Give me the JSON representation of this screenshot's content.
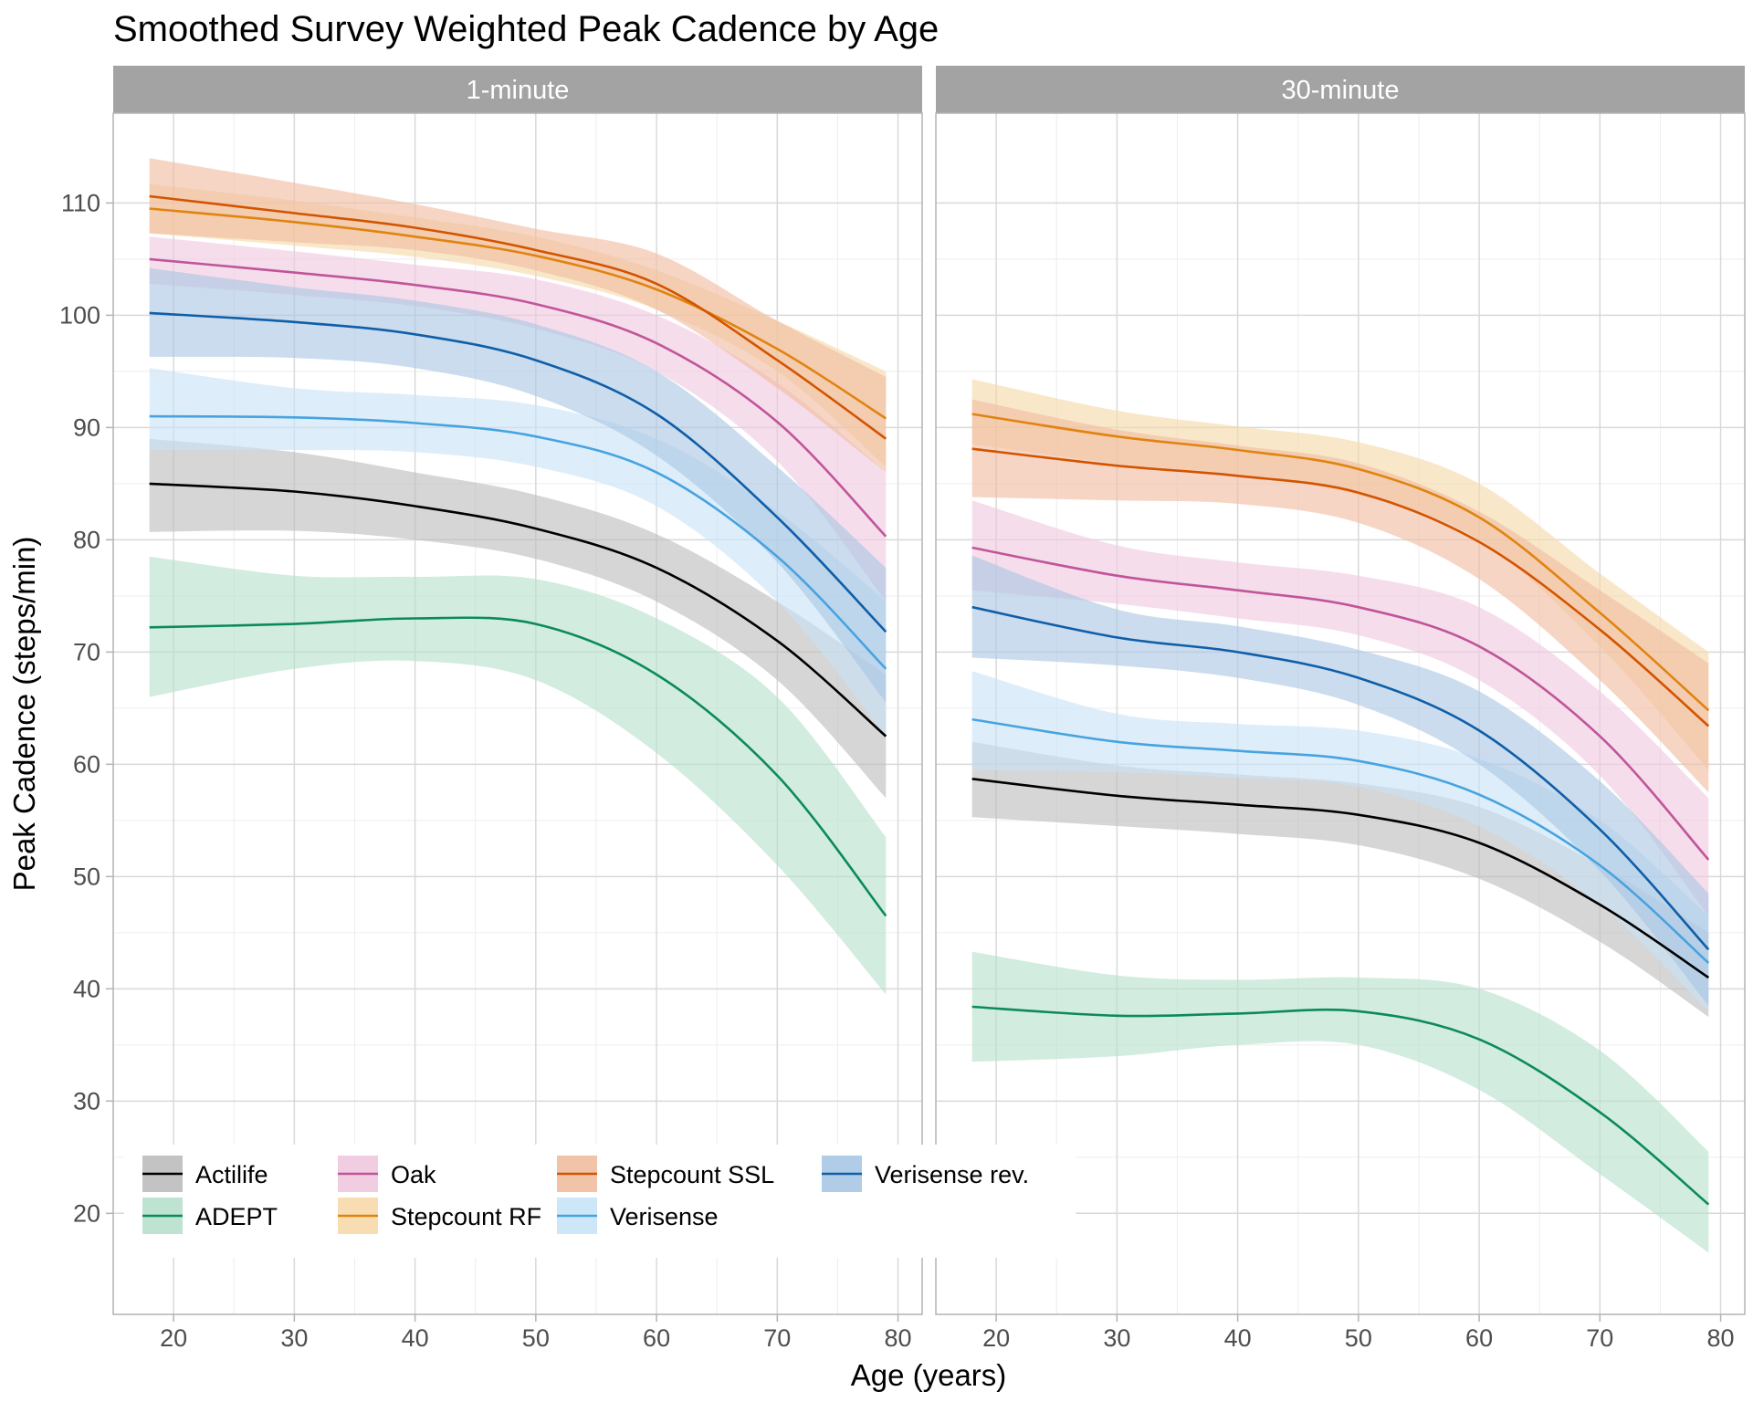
{
  "chart_data": {
    "type": "line",
    "title": "Smoothed Survey Weighted Peak Cadence by Age",
    "xlabel": "Age (years)",
    "ylabel": "Peak Cadence (steps/min)",
    "xlim": [
      15,
      82
    ],
    "ylim": [
      11,
      118
    ],
    "x_ticks": [
      20,
      30,
      40,
      50,
      60,
      70,
      80
    ],
    "y_ticks": [
      20,
      30,
      40,
      50,
      60,
      70,
      80,
      90,
      100,
      110
    ],
    "grid": true,
    "legend_position": "bottom-left",
    "x": [
      18,
      30,
      40,
      50,
      60,
      70,
      79
    ],
    "series_styles": [
      {
        "name": "Actilife",
        "color": "#000000",
        "fill": "#bdbdbd"
      },
      {
        "name": "ADEPT",
        "color": "#0b8a5b",
        "fill": "#b7e0cc"
      },
      {
        "name": "Oak",
        "color": "#c0559a",
        "fill": "#f0c8de"
      },
      {
        "name": "Stepcount RF",
        "color": "#e08410",
        "fill": "#f6d9a8"
      },
      {
        "name": "Stepcount SSL",
        "color": "#d35400",
        "fill": "#f0bca0"
      },
      {
        "name": "Verisense",
        "color": "#47a3e0",
        "fill": "#c8e3f7"
      },
      {
        "name": "Verisense rev.",
        "color": "#0f5ea8",
        "fill": "#a9c7e3"
      }
    ],
    "legend": [
      {
        "name": "Actilife",
        "color": "#000000",
        "fill": "#bdbdbd"
      },
      {
        "name": "ADEPT",
        "color": "#0b8a5b",
        "fill": "#b7e0cc"
      },
      {
        "name": "Oak",
        "color": "#c0559a",
        "fill": "#f0c8de"
      },
      {
        "name": "Stepcount RF",
        "color": "#e08410",
        "fill": "#f6d9a8"
      },
      {
        "name": "Stepcount SSL",
        "color": "#d35400",
        "fill": "#f0bca0"
      },
      {
        "name": "Verisense",
        "color": "#47a3e0",
        "fill": "#c8e3f7"
      },
      {
        "name": "Verisense rev.",
        "color": "#0f5ea8",
        "fill": "#a9c7e3"
      }
    ],
    "panels": [
      {
        "label": "1-minute",
        "series": [
          {
            "name": "Actilife",
            "y": [
              85,
              84.3,
              83,
              81,
              77.5,
              71,
              62.5
            ],
            "lower": [
              80.7,
              80.8,
              80,
              78.3,
              74.5,
              67.5,
              57
            ],
            "upper": [
              89,
              87.8,
              86,
              84,
              80.5,
              74.5,
              68
            ]
          },
          {
            "name": "ADEPT",
            "y": [
              72.2,
              72.5,
              73,
              72.5,
              68,
              59,
              46.5
            ],
            "lower": [
              66,
              68.5,
              69.2,
              67.5,
              61,
              51,
              39.5
            ],
            "upper": [
              78.5,
              76.8,
              76.7,
              76.5,
              73,
              66,
              53.5
            ]
          },
          {
            "name": "Oak",
            "y": [
              105,
              103.8,
              102.7,
              101,
              97.5,
              90.5,
              80.3
            ],
            "lower": [
              102.8,
              101.8,
              100.8,
              98.8,
              95,
              87,
              74.5
            ],
            "upper": [
              107,
              105.7,
              104.5,
              103.2,
              100,
              94,
              86
            ]
          },
          {
            "name": "Stepcount RF",
            "y": [
              109.5,
              108.3,
              107,
              105.3,
              102.3,
              97,
              90.8
            ],
            "lower": [
              107.3,
              106.2,
              105.2,
              103.5,
              100.5,
              95,
              86.5
            ],
            "upper": [
              111.7,
              110.2,
              108.7,
              107,
              104,
              99.5,
              95
            ]
          },
          {
            "name": "Stepcount SSL",
            "y": [
              110.6,
              109.1,
              107.8,
              105.8,
              102.8,
              96,
              89
            ],
            "lower": [
              107.3,
              106.5,
              105.8,
              104,
              100.5,
              93.5,
              86
            ],
            "upper": [
              114,
              111.8,
              109.9,
              107.7,
              105.5,
              99.5,
              94.5
            ]
          },
          {
            "name": "Verisense",
            "y": [
              91,
              90.9,
              90.4,
              89.2,
              86,
              78.5,
              68.5
            ],
            "lower": [
              88,
              88,
              87.8,
              86.5,
              83,
              74.5,
              62.5
            ],
            "upper": [
              95.3,
              93.5,
              92.9,
              92,
              89,
              82.5,
              74.5
            ]
          },
          {
            "name": "Verisense rev.",
            "y": [
              100.2,
              99.4,
              98.3,
              96,
              91.2,
              82,
              71.8
            ],
            "lower": [
              96.3,
              96.2,
              95.3,
              92.8,
              87.5,
              78,
              65.5
            ],
            "upper": [
              104.2,
              102.5,
              101.3,
              99.2,
              95,
              86.5,
              77.5
            ]
          }
        ]
      },
      {
        "label": "30-minute",
        "series": [
          {
            "name": "Actilife",
            "y": [
              58.7,
              57.2,
              56.4,
              55.5,
              53,
              47.5,
              41
            ],
            "lower": [
              55.3,
              54.5,
              53.8,
              52.8,
              49.8,
              44.2,
              37.5
            ],
            "upper": [
              62,
              59.9,
              59.1,
              58.3,
              56.2,
              51,
              45
            ]
          },
          {
            "name": "ADEPT",
            "y": [
              38.4,
              37.6,
              37.8,
              38,
              35.5,
              29,
              20.8
            ],
            "lower": [
              33.5,
              34,
              35,
              35,
              31,
              23.5,
              16.5
            ],
            "upper": [
              43.3,
              41.2,
              40.8,
              41,
              40,
              34.5,
              25.5
            ]
          },
          {
            "name": "Oak",
            "y": [
              79.3,
              76.8,
              75.5,
              74,
              70.5,
              62.5,
              51.5
            ],
            "lower": [
              75.5,
              74.3,
              73,
              71.5,
              67.5,
              59,
              46.5
            ],
            "upper": [
              83.5,
              79.5,
              78,
              76.8,
              74,
              66.5,
              57
            ]
          },
          {
            "name": "Stepcount RF",
            "y": [
              91.2,
              89.2,
              88,
              86.3,
              82,
              73.5,
              64.8
            ],
            "lower": [
              88.5,
              86.8,
              85.8,
              84,
              80,
              70.5,
              59.5
            ],
            "upper": [
              94.3,
              91.5,
              90.1,
              88.7,
              85,
              77,
              70
            ]
          },
          {
            "name": "Stepcount SSL",
            "y": [
              88.1,
              86.6,
              85.7,
              84.2,
              79.8,
              72,
              63.4
            ],
            "lower": [
              83.8,
              83.5,
              83.2,
              81.5,
              76.5,
              67.5,
              57.5
            ],
            "upper": [
              92.5,
              89.8,
              88.4,
              86.8,
              82.5,
              75.5,
              69
            ]
          },
          {
            "name": "Verisense",
            "y": [
              64,
              62,
              61.2,
              60.3,
              57.3,
              51,
              42.3
            ],
            "lower": [
              59.5,
              59.3,
              58.8,
              58,
              54.5,
              47.5,
              38
            ],
            "upper": [
              68.3,
              64.5,
              63.6,
              63,
              60.5,
              55,
              46.5
            ]
          },
          {
            "name": "Verisense rev.",
            "y": [
              74,
              71.3,
              70,
              67.7,
              63,
              54.2,
              43.5
            ],
            "lower": [
              69.5,
              68.8,
              67.7,
              65.3,
              60,
              50.5,
              38.5
            ],
            "upper": [
              78.6,
              73.8,
              72.3,
              70.2,
              66.5,
              58.5,
              48.5
            ]
          }
        ]
      }
    ]
  }
}
